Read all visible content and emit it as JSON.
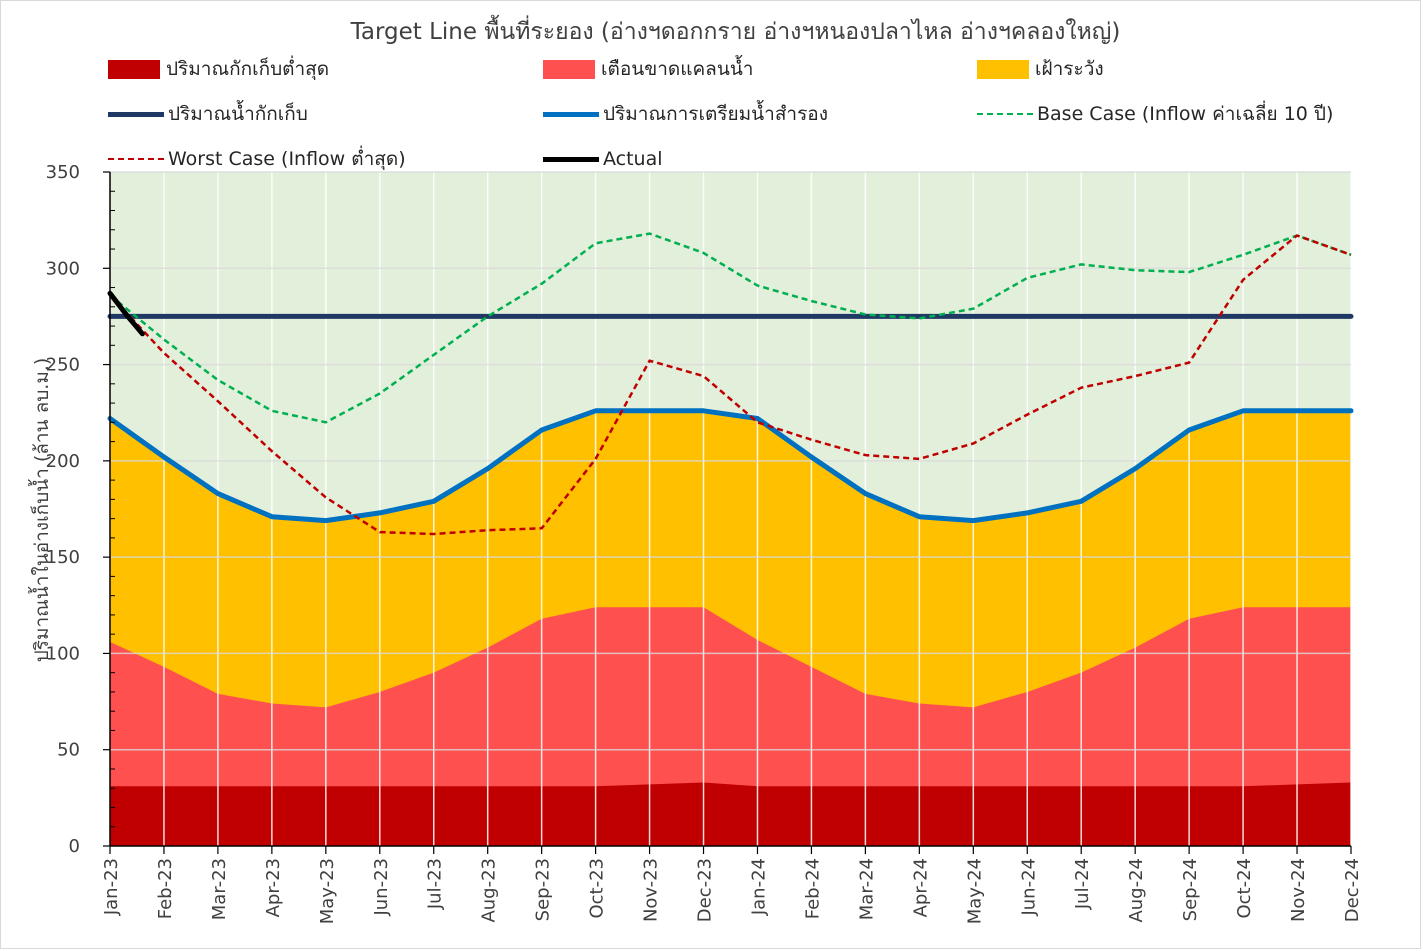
{
  "chart_data": {
    "type": "area",
    "title": "Target Line พื้นที่ระยอง (อ่างฯดอกกราย อ่างฯหนองปลาไหล อ่างฯคลองใหญ่)",
    "xlabel": "",
    "ylabel": "ปริมาณน้ำในอ่างเก็บน้ำ (ล้าน ลบ.ม.)",
    "ylim": [
      0,
      350
    ],
    "yticks": [
      0,
      50,
      100,
      150,
      200,
      250,
      300,
      350
    ],
    "grid": true,
    "legend_position": "top",
    "categories": [
      "Jan-23",
      "Feb-23",
      "Mar-23",
      "Apr-23",
      "May-23",
      "Jun-23",
      "Jul-23",
      "Aug-23",
      "Sep-23",
      "Oct-23",
      "Nov-23",
      "Dec-23",
      "Jan-24",
      "Feb-24",
      "Mar-24",
      "Apr-24",
      "May-24",
      "Jun-24",
      "Jul-24",
      "Aug-24",
      "Sep-24",
      "Oct-24",
      "Nov-24",
      "Dec-24"
    ],
    "background_band": {
      "color": "#e2efda",
      "from": 0,
      "to": 350
    },
    "areas": [
      {
        "name": "ปริมาณกักเก็บต่ำสุด",
        "color": "#c00000",
        "values": [
          31,
          31,
          31,
          31,
          31,
          31,
          31,
          31,
          31,
          31,
          32,
          33,
          31,
          31,
          31,
          31,
          31,
          31,
          31,
          31,
          31,
          31,
          32,
          33
        ]
      },
      {
        "name": "เตือนขาดแคลนน้ำ",
        "color": "#ff5050",
        "values": [
          106,
          93,
          79,
          74,
          72,
          80,
          90,
          103,
          118,
          124,
          124,
          124,
          107,
          93,
          79,
          74,
          72,
          80,
          90,
          103,
          118,
          124,
          124,
          124
        ]
      },
      {
        "name": "เฝ้าระวัง",
        "color": "#ffc000",
        "values": [
          222,
          202,
          183,
          171,
          169,
          173,
          179,
          196,
          216,
          226,
          226,
          226,
          222,
          202,
          183,
          171,
          169,
          173,
          179,
          196,
          216,
          226,
          226,
          226
        ]
      }
    ],
    "series": [
      {
        "name": "ปริมาณน้ำกักเก็บ",
        "color": "#203864",
        "dash": "solid",
        "values": [
          275,
          275,
          275,
          275,
          275,
          275,
          275,
          275,
          275,
          275,
          275,
          275,
          275,
          275,
          275,
          275,
          275,
          275,
          275,
          275,
          275,
          275,
          275,
          275
        ]
      },
      {
        "name": "ปริมาณการเตรียมน้ำสำรอง",
        "color": "#0070c0",
        "dash": "solid",
        "values": [
          222,
          202,
          183,
          171,
          169,
          173,
          179,
          196,
          216,
          226,
          226,
          226,
          222,
          202,
          183,
          171,
          169,
          173,
          179,
          196,
          216,
          226,
          226,
          226
        ]
      },
      {
        "name": "Base Case (Inflow ค่าเฉลี่ย 10 ปี)",
        "color": "#00b050",
        "dash": "dashed",
        "values": [
          286,
          263,
          242,
          226,
          220,
          235,
          255,
          275,
          292,
          313,
          318,
          308,
          291,
          283,
          276,
          274,
          279,
          295,
          302,
          299,
          298,
          307,
          317,
          307
        ]
      },
      {
        "name": "Worst Case (Inflow ต่ำสุด)",
        "color": "#c00000",
        "dash": "dashed",
        "values": [
          286,
          256,
          231,
          205,
          181,
          163,
          162,
          164,
          165,
          201,
          252,
          244,
          220,
          211,
          203,
          201,
          209,
          224,
          238,
          244,
          251,
          294,
          317,
          307
        ]
      },
      {
        "name": "Actual",
        "color": "#000000",
        "dash": "solid",
        "x": [
          0,
          0.3,
          0.6
        ],
        "values": [
          287,
          276,
          266
        ]
      }
    ]
  },
  "legend": [
    {
      "label": "ปริมาณกักเก็บต่ำสุด",
      "kind": "rect",
      "color": "#c00000"
    },
    {
      "label": "เตือนขาดแคลนน้ำ",
      "kind": "rect",
      "color": "#ff5050"
    },
    {
      "label": "เฝ้าระวัง",
      "kind": "rect",
      "color": "#ffc000"
    },
    {
      "label": "ปริมาณน้ำกักเก็บ",
      "kind": "line",
      "color": "#203864",
      "dash": "solid"
    },
    {
      "label": "ปริมาณการเตรียมน้ำสำรอง",
      "kind": "line",
      "color": "#0070c0",
      "dash": "solid"
    },
    {
      "label": "Base Case (Inflow ค่าเฉลี่ย 10 ปี)",
      "kind": "line",
      "color": "#00b050",
      "dash": "dashed"
    },
    {
      "label": "Worst Case (Inflow ต่ำสุด)",
      "kind": "line",
      "color": "#c00000",
      "dash": "dashed"
    },
    {
      "label": "Actual",
      "kind": "line",
      "color": "#000000",
      "dash": "solid"
    }
  ]
}
